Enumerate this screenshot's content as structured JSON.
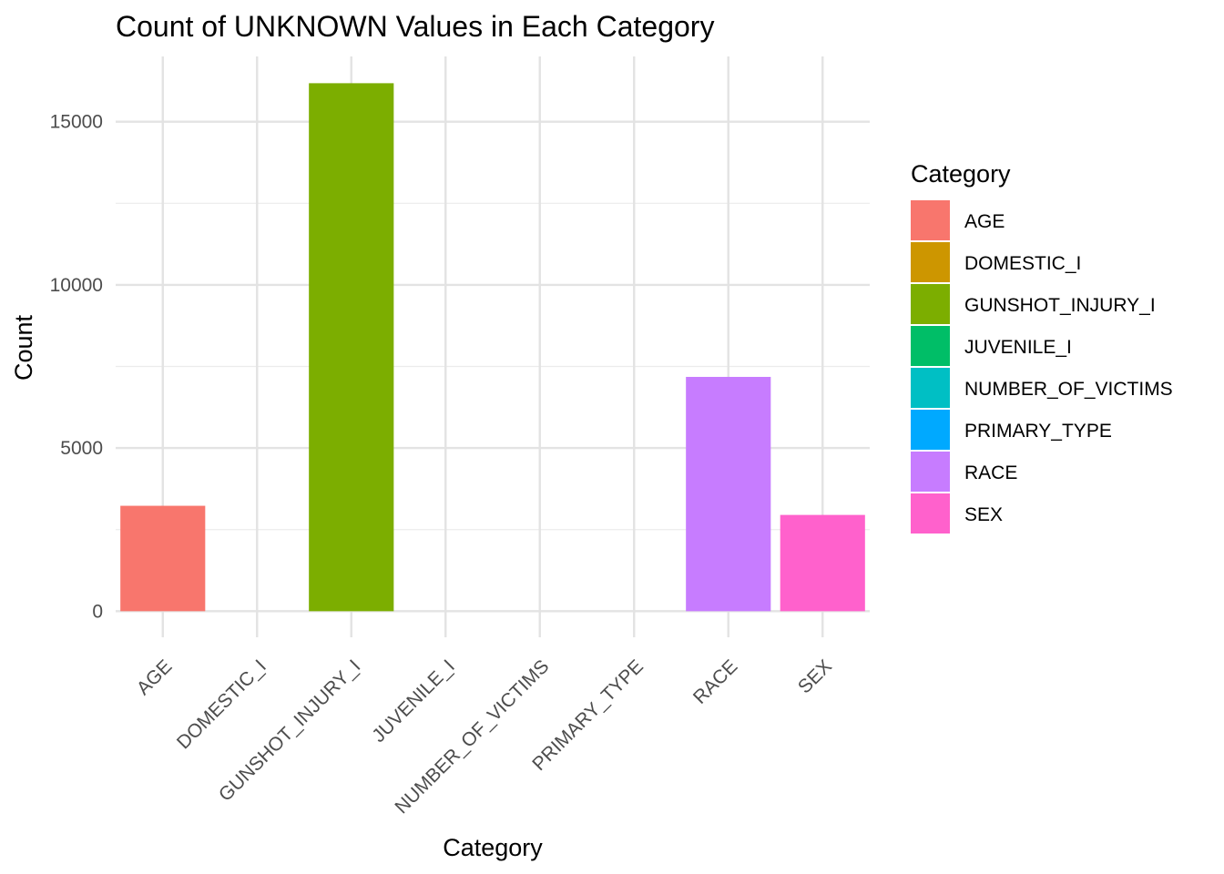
{
  "chart_data": {
    "type": "bar",
    "title": "Count of UNKNOWN Values in Each Category",
    "xlabel": "Category",
    "ylabel": "Count",
    "categories": [
      "AGE",
      "DOMESTIC_I",
      "GUNSHOT_INJURY_I",
      "JUVENILE_I",
      "NUMBER_OF_VICTIMS",
      "PRIMARY_TYPE",
      "RACE",
      "SEX"
    ],
    "values": [
      3230,
      0,
      16180,
      0,
      0,
      0,
      7180,
      2950
    ],
    "colors": [
      "#F8766D",
      "#CD9600",
      "#7CAE00",
      "#00BE67",
      "#00BFC4",
      "#00A9FF",
      "#C77CFF",
      "#FF61CC"
    ],
    "ylim": [
      -800,
      17000
    ],
    "yticks": [
      "0",
      "5000",
      "10000",
      "15000"
    ],
    "ytick_values": [
      0,
      5000,
      10000,
      15000
    ],
    "grid": true,
    "legend": {
      "title": "Category",
      "position": "right",
      "entries": [
        "AGE",
        "DOMESTIC_I",
        "GUNSHOT_INJURY_I",
        "JUVENILE_I",
        "NUMBER_OF_VICTIMS",
        "PRIMARY_TYPE",
        "RACE",
        "SEX"
      ]
    }
  }
}
